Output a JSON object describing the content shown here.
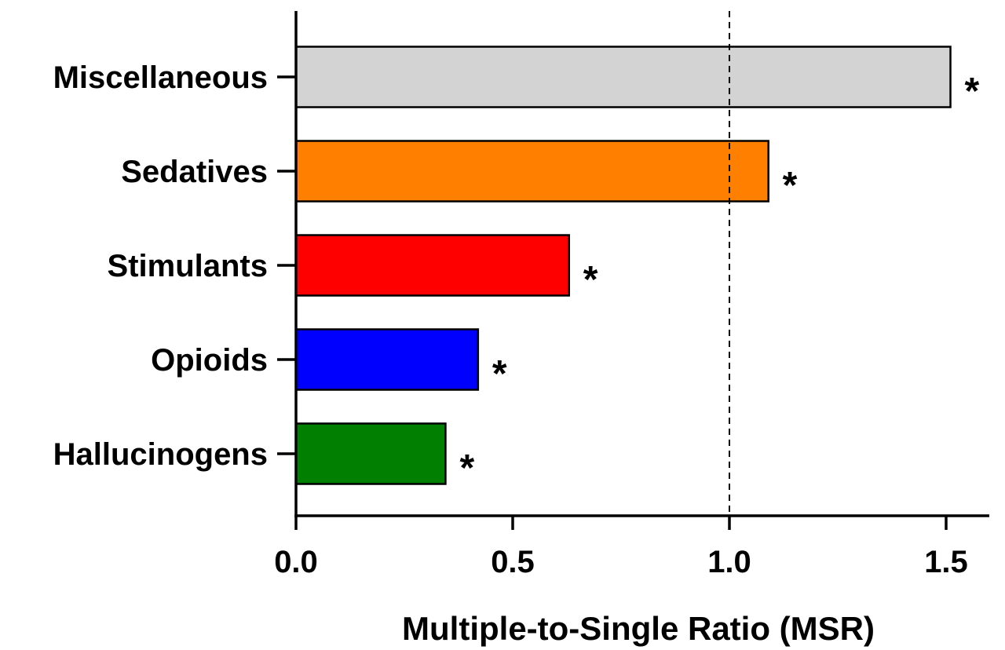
{
  "chart_data": {
    "type": "bar",
    "orientation": "horizontal",
    "categories": [
      "Miscellaneous",
      "Sedatives",
      "Stimulants",
      "Opioids",
      "Hallucinogens"
    ],
    "values": [
      1.51,
      1.09,
      0.63,
      0.42,
      0.345
    ],
    "colors": [
      "#d3d3d3",
      "#ff8000",
      "#ff0000",
      "#0000ff",
      "#007f00"
    ],
    "annotations": [
      "*",
      "*",
      "*",
      "*",
      "*"
    ],
    "xlabel": "Multiple-to-Single Ratio (MSR)",
    "ylabel": "",
    "xlim": [
      0,
      1.6
    ],
    "x_ticks": [
      0.0,
      0.5,
      1.0,
      1.5
    ],
    "x_tick_labels": [
      "0.0",
      "0.5",
      "1.0",
      "1.5"
    ],
    "reference_line": 1.0,
    "grid": false,
    "legend": "none"
  }
}
